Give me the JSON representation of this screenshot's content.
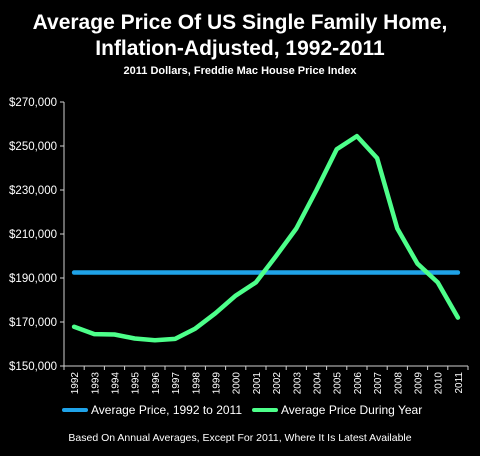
{
  "title_line1": "Average Price Of US Single Family Home,",
  "title_line2": "Inflation-Adjusted, 1992-2011",
  "subtitle": "2011 Dollars, Freddie Mac House Price Index",
  "footnote": "Based On Annual Averages, Except For 2011, Where It Is Latest Available",
  "chart_data": {
    "type": "line",
    "categories": [
      "1992",
      "1993",
      "1994",
      "1995",
      "1996",
      "1997",
      "1998",
      "1999",
      "2000",
      "2001",
      "2002",
      "2003",
      "2004",
      "2005",
      "2006",
      "2007",
      "2008",
      "2009",
      "2010",
      "2011"
    ],
    "ylim": [
      150000,
      270000
    ],
    "yticks": [
      150000,
      170000,
      190000,
      210000,
      230000,
      250000,
      270000
    ],
    "ytick_labels": [
      "$150,000",
      "$170,000",
      "$190,000",
      "$210,000",
      "$230,000",
      "$250,000",
      "$270,000"
    ],
    "grid": false,
    "legend_position": "bottom",
    "series": [
      {
        "name": "Average Price, 1992 to 2011",
        "color": "#1fa3e8",
        "values": [
          192500,
          192500,
          192500,
          192500,
          192500,
          192500,
          192500,
          192500,
          192500,
          192500,
          192500,
          192500,
          192500,
          192500,
          192500,
          192500,
          192500,
          192500,
          192500,
          192500
        ]
      },
      {
        "name": "Average Price During Year",
        "color": "#4dff8a",
        "values": [
          167800,
          164500,
          164300,
          162500,
          161700,
          162300,
          167000,
          174000,
          182000,
          188000,
          200000,
          212500,
          230000,
          248500,
          254500,
          244500,
          212500,
          196500,
          188000,
          172000
        ]
      }
    ]
  }
}
